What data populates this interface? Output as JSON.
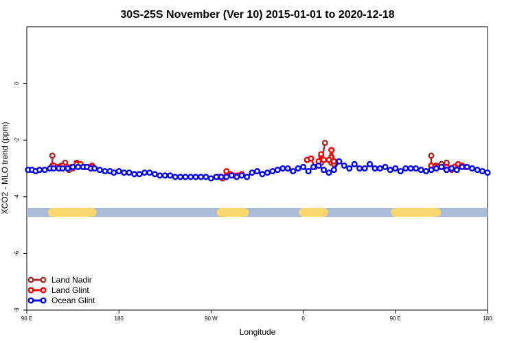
{
  "chart_data": {
    "type": "line",
    "title": "30S-25S November (Ver 10)   2015-01-01 to 2020-12-18",
    "xlabel": "Longitude",
    "ylabel": "XCO2 - MLO trend (ppm)",
    "xlim": [
      90,
      450
    ],
    "ylim": [
      -8,
      2
    ],
    "x_ticks": [
      {
        "value": 90,
        "label": "90 E"
      },
      {
        "value": 162,
        "label": "180"
      },
      {
        "value": 234,
        "label": "90 W"
      },
      {
        "value": 306,
        "label": "0"
      },
      {
        "value": 378,
        "label": "90 E"
      },
      {
        "value": 450,
        "label": "180"
      }
    ],
    "y_ticks": [
      {
        "value": -8,
        "label": "-8"
      },
      {
        "value": -6,
        "label": "-6"
      },
      {
        "value": -4,
        "label": "-4"
      },
      {
        "value": -2,
        "label": "-2"
      },
      {
        "value": 0,
        "label": "0"
      }
    ],
    "grid": false,
    "legend_position": "bottom-left",
    "land_band": {
      "y": -4.55,
      "ocean_color": "#a8bcd8",
      "land_color": "#fbd66c",
      "land_segments": [
        [
          110,
          141
        ],
        [
          242,
          260
        ],
        [
          306,
          322
        ],
        [
          378,
          410
        ]
      ]
    },
    "series": [
      {
        "name": "Land Nadir",
        "color": "#a52a2a",
        "segments": [
          [
            [
              110,
              -2.55
            ],
            [
              110,
              -2.9
            ],
            [
              113,
              -2.95
            ],
            [
              117,
              -2.9
            ],
            [
              120,
              -2.8
            ],
            [
              123,
              -3.05
            ],
            [
              126,
              -3.0
            ],
            [
              129,
              -2.8
            ],
            [
              132,
              -2.9
            ],
            [
              135,
              -2.95
            ],
            [
              138,
              -2.95
            ],
            [
              141,
              -2.9
            ]
          ],
          [
            [
              320,
              -2.55
            ],
            [
              320,
              -2.8
            ],
            [
              323,
              -2.1
            ]
          ],
          [
            [
              328,
              -2.6
            ],
            [
              328,
              -2.8
            ],
            [
              330,
              -2.85
            ]
          ],
          [
            [
              406,
              -2.55
            ],
            [
              406,
              -2.9
            ],
            [
              410,
              -2.9
            ],
            [
              414,
              -2.85
            ],
            [
              418,
              -2.8
            ],
            [
              422,
              -3.05
            ],
            [
              426,
              -2.9
            ],
            [
              430,
              -2.9
            ]
          ]
        ]
      },
      {
        "name": "Land Glint",
        "color": "#ff0000",
        "segments": [
          [
            [
              111,
              -2.9
            ],
            [
              114,
              -2.95
            ],
            [
              118,
              -2.9
            ],
            [
              121,
              -2.95
            ],
            [
              125,
              -2.95
            ],
            [
              129,
              -2.85
            ],
            [
              132,
              -2.85
            ],
            [
              135,
              -2.95
            ],
            [
              138,
              -2.95
            ],
            [
              141,
              -2.95
            ]
          ],
          [
            [
              240,
              -3.3
            ],
            [
              243,
              -3.35
            ],
            [
              246,
              -3.1
            ],
            [
              249,
              -3.2
            ],
            [
              252,
              -3.25
            ],
            [
              255,
              -3.25
            ],
            [
              258,
              -3.2
            ]
          ],
          [
            [
              309,
              -2.7
            ],
            [
              312,
              -2.65
            ],
            [
              315,
              -2.95
            ],
            [
              318,
              -2.75
            ],
            [
              320,
              -2.5
            ],
            [
              322,
              -2.7
            ]
          ],
          [
            [
              326,
              -2.7
            ],
            [
              328,
              -2.35
            ],
            [
              330,
              -2.75
            ]
          ],
          [
            [
              406,
              -2.9
            ],
            [
              409,
              -2.95
            ],
            [
              412,
              -2.95
            ],
            [
              415,
              -2.95
            ],
            [
              418,
              -2.95
            ],
            [
              421,
              -3.0
            ],
            [
              424,
              -2.95
            ],
            [
              427,
              -2.85
            ],
            [
              430,
              -2.9
            ],
            [
              433,
              -2.95
            ]
          ]
        ]
      },
      {
        "name": "Ocean Glint",
        "color": "#0000ff",
        "segments": [
          [
            [
              91,
              -3.05
            ],
            [
              94,
              -3.05
            ],
            [
              97,
              -3.1
            ],
            [
              100,
              -3.05
            ],
            [
              104,
              -3.05
            ],
            [
              108,
              -3.0
            ],
            [
              111,
              -3.0
            ],
            [
              115,
              -3.0
            ],
            [
              118,
              -3.0
            ],
            [
              122,
              -3.0
            ],
            [
              126,
              -2.95
            ],
            [
              130,
              -2.95
            ],
            [
              134,
              -2.95
            ],
            [
              137,
              -2.95
            ],
            [
              140,
              -3.0
            ],
            [
              143,
              -3.0
            ],
            [
              147,
              -3.05
            ],
            [
              151,
              -3.1
            ],
            [
              155,
              -3.1
            ],
            [
              158,
              -3.15
            ],
            [
              162,
              -3.1
            ],
            [
              166,
              -3.15
            ],
            [
              170,
              -3.15
            ],
            [
              174,
              -3.2
            ],
            [
              178,
              -3.2
            ],
            [
              182,
              -3.15
            ],
            [
              186,
              -3.15
            ],
            [
              190,
              -3.2
            ],
            [
              194,
              -3.25
            ],
            [
              198,
              -3.25
            ],
            [
              202,
              -3.25
            ],
            [
              206,
              -3.3
            ],
            [
              210,
              -3.3
            ],
            [
              214,
              -3.3
            ],
            [
              218,
              -3.3
            ],
            [
              222,
              -3.3
            ],
            [
              226,
              -3.3
            ],
            [
              230,
              -3.3
            ],
            [
              234,
              -3.35
            ],
            [
              238,
              -3.3
            ],
            [
              242,
              -3.3
            ],
            [
              246,
              -3.3
            ],
            [
              250,
              -3.25
            ],
            [
              254,
              -3.3
            ],
            [
              258,
              -3.25
            ],
            [
              262,
              -3.3
            ],
            [
              266,
              -3.15
            ],
            [
              270,
              -3.1
            ],
            [
              274,
              -3.2
            ],
            [
              278,
              -3.15
            ],
            [
              282,
              -3.1
            ],
            [
              286,
              -3.05
            ],
            [
              290,
              -3.0
            ],
            [
              294,
              -3.0
            ],
            [
              298,
              -3.1
            ],
            [
              302,
              -3.0
            ],
            [
              306,
              -2.95
            ],
            [
              310,
              -3.1
            ],
            [
              314,
              -2.95
            ],
            [
              318,
              -2.9
            ],
            [
              322,
              -3.05
            ],
            [
              326,
              -3.15
            ],
            [
              330,
              -3.05
            ],
            [
              334,
              -2.75
            ],
            [
              338,
              -2.9
            ],
            [
              342,
              -3.0
            ],
            [
              346,
              -2.85
            ],
            [
              350,
              -3.0
            ],
            [
              354,
              -3.0
            ],
            [
              358,
              -2.85
            ],
            [
              362,
              -3.0
            ],
            [
              366,
              -3.0
            ],
            [
              370,
              -2.95
            ],
            [
              374,
              -3.05
            ],
            [
              378,
              -3.0
            ],
            [
              382,
              -3.1
            ],
            [
              386,
              -3.0
            ],
            [
              390,
              -3.0
            ],
            [
              394,
              -3.0
            ],
            [
              398,
              -3.05
            ],
            [
              402,
              -3.1
            ],
            [
              406,
              -3.05
            ],
            [
              410,
              -3.0
            ],
            [
              414,
              -2.95
            ],
            [
              418,
              -3.05
            ],
            [
              422,
              -3.0
            ],
            [
              426,
              -3.05
            ],
            [
              430,
              -2.95
            ],
            [
              434,
              -2.95
            ],
            [
              438,
              -3.0
            ],
            [
              442,
              -3.05
            ],
            [
              446,
              -3.1
            ],
            [
              450,
              -3.15
            ]
          ]
        ]
      }
    ]
  }
}
